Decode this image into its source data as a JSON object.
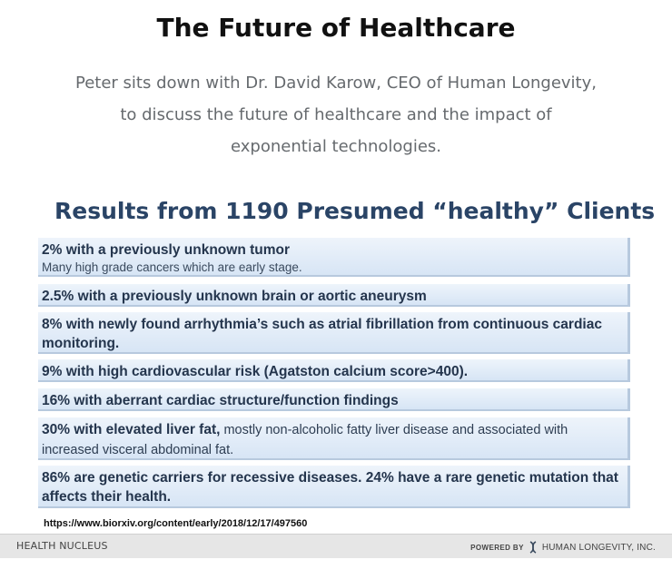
{
  "title": "The Future of Healthcare",
  "intro": "Peter sits down with Dr. David Karow, CEO of Human Longevity, to discuss the future of healthcare and the impact of exponential technologies.",
  "slide": {
    "heading": "Results from 1190 Presumed “healthy” Clients",
    "items": [
      {
        "main": "2% with a previously unknown tumor",
        "sub": "Many high grade cancers which are early stage."
      },
      {
        "main": "2.5% with a previously unknown brain or aortic aneurysm"
      },
      {
        "main": "8% with newly found arrhythmia’s such as atrial fibrillation from continuous cardiac monitoring."
      },
      {
        "main": "9% with high cardiovascular risk (Agatston calcium score>400)."
      },
      {
        "main": "16% with aberrant cardiac structure/function findings"
      },
      {
        "main": "30% with elevated liver fat,",
        "inline_sub": " mostly non-alcoholic fatty liver disease and associated with increased visceral abdominal fat."
      },
      {
        "main": "86% are genetic carriers for recessive diseases.  24% have a rare genetic mutation that affects their health."
      }
    ],
    "source_url": "https://www.biorxiv.org/content/early/2018/12/17/497560",
    "footer": {
      "left": "HEALTH NUCLEUS",
      "powered_by": "POWERED BY",
      "logo_icon": "dna-helix-icon",
      "brand": "HUMAN LONGEVITY, INC."
    }
  }
}
